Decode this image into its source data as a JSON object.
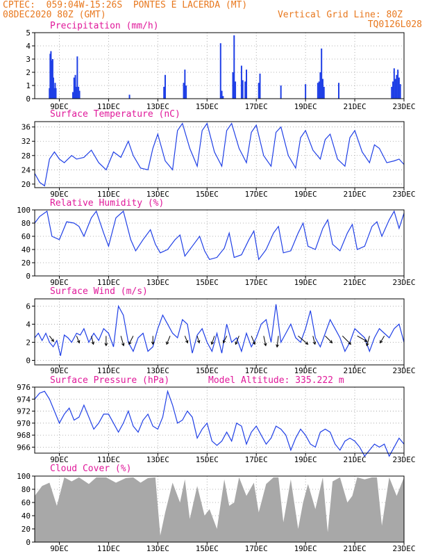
{
  "header": {
    "line1_left": "CPTEC:  059:04W-15:26S  PONTES E LACERDA (MT)",
    "line2_left": "08DEC2020 80Z (GMT)",
    "line2_right": "Vertical Grid Line: 80Z",
    "line3_right": "TQ0126L028"
  },
  "colors": {
    "header": "#e8781e",
    "title": "#e0189a",
    "series": "#1f3fe6",
    "cloud": "#a8a8a8",
    "grid": "#9a9a9a"
  },
  "x_axis": {
    "ticks": [
      "9DEC",
      "11DEC",
      "13DEC",
      "15DEC",
      "17DEC",
      "19DEC",
      "21DEC",
      "23DEC"
    ],
    "tick_days": [
      9,
      11,
      13,
      15,
      17,
      19,
      21,
      23
    ],
    "range_days": [
      8.0,
      23.0
    ]
  },
  "chart_data": [
    {
      "id": "precip",
      "type": "bar",
      "title": "Precipitation (mm/h)",
      "ylim": [
        0,
        5
      ],
      "yticks": [
        0,
        1,
        2,
        3,
        4,
        5
      ],
      "color": "#1f3fe6",
      "x": [
        8.6,
        8.63,
        8.66,
        8.7,
        8.73,
        8.76,
        8.8,
        8.83,
        8.86,
        9.55,
        9.6,
        9.65,
        9.7,
        9.73,
        9.78,
        9.82,
        11.85,
        13.25,
        13.3,
        14.05,
        14.1,
        14.15,
        15.55,
        15.6,
        15.65,
        16.05,
        16.1,
        16.15,
        16.4,
        16.45,
        16.55,
        16.6,
        17.1,
        17.15,
        18.0,
        19.0,
        19.5,
        19.55,
        19.6,
        19.65,
        19.7,
        19.75,
        20.35,
        22.5,
        22.55,
        22.6,
        22.65,
        22.7,
        22.75,
        22.8,
        22.85
      ],
      "values": [
        0.8,
        3.4,
        3.6,
        2.9,
        3.0,
        1.6,
        0.8,
        1.2,
        0.8,
        0.5,
        1.6,
        1.8,
        0.9,
        3.2,
        0.9,
        0.6,
        0.3,
        0.9,
        1.8,
        1.2,
        2.2,
        1.0,
        4.2,
        0.6,
        0.2,
        2.0,
        4.8,
        1.3,
        2.5,
        1.4,
        1.3,
        2.2,
        1.2,
        1.9,
        1.0,
        1.1,
        1.2,
        1.3,
        2.0,
        3.8,
        1.5,
        0.9,
        1.2,
        0.9,
        1.3,
        2.3,
        1.5,
        1.8,
        2.2,
        1.6,
        1.1
      ]
    },
    {
      "id": "temp",
      "type": "line",
      "title": "Surface Temperature (nC)",
      "ylim": [
        19,
        37.5
      ],
      "yticks": [
        20,
        24,
        28,
        32,
        36
      ],
      "color": "#1f3fe6",
      "x": [
        8.0,
        8.2,
        8.4,
        8.6,
        8.8,
        9.0,
        9.2,
        9.5,
        9.7,
        10.0,
        10.3,
        10.6,
        10.9,
        11.2,
        11.5,
        11.8,
        12.0,
        12.3,
        12.6,
        12.8,
        13.0,
        13.3,
        13.6,
        13.8,
        14.0,
        14.3,
        14.6,
        14.8,
        15.0,
        15.3,
        15.6,
        15.8,
        16.0,
        16.3,
        16.6,
        16.8,
        17.0,
        17.3,
        17.6,
        17.8,
        18.0,
        18.3,
        18.6,
        18.8,
        19.0,
        19.3,
        19.6,
        19.8,
        20.0,
        20.3,
        20.6,
        20.8,
        21.0,
        21.3,
        21.6,
        21.8,
        22.0,
        22.3,
        22.6,
        22.8,
        23.0
      ],
      "y": [
        23.0,
        20.5,
        19.5,
        27.0,
        29.0,
        27.0,
        26.0,
        28.0,
        27.0,
        27.5,
        29.5,
        26.0,
        24.0,
        29.0,
        27.5,
        32.0,
        28.0,
        24.5,
        24.0,
        30.0,
        34.0,
        26.5,
        24.0,
        35.0,
        37.0,
        30.0,
        25.0,
        35.0,
        37.0,
        29.0,
        25.0,
        35.0,
        37.0,
        30.0,
        26.0,
        34.5,
        36.5,
        28.0,
        25.0,
        34.5,
        36.0,
        28.0,
        24.5,
        33.0,
        35.0,
        29.5,
        27.0,
        32.5,
        34.0,
        27.0,
        25.0,
        33.0,
        35.0,
        29.0,
        26.0,
        31.0,
        30.0,
        26.0,
        26.5,
        27.0,
        25.5
      ]
    },
    {
      "id": "rh",
      "type": "line",
      "title": "Relative Humidity (%)",
      "ylim": [
        0,
        100
      ],
      "yticks": [
        0,
        20,
        40,
        60,
        80,
        100
      ],
      "color": "#1f3fe6",
      "x": [
        8.0,
        8.2,
        8.5,
        8.7,
        9.0,
        9.3,
        9.6,
        9.8,
        10.0,
        10.3,
        10.5,
        10.8,
        11.0,
        11.3,
        11.6,
        11.9,
        12.1,
        12.4,
        12.7,
        12.9,
        13.1,
        13.4,
        13.7,
        13.9,
        14.1,
        14.4,
        14.7,
        14.9,
        15.1,
        15.4,
        15.7,
        15.9,
        16.1,
        16.4,
        16.7,
        16.9,
        17.1,
        17.4,
        17.7,
        17.9,
        18.1,
        18.4,
        18.7,
        18.9,
        19.1,
        19.4,
        19.7,
        19.9,
        20.1,
        20.4,
        20.7,
        20.9,
        21.1,
        21.4,
        21.7,
        21.9,
        22.1,
        22.4,
        22.6,
        22.8,
        23.0
      ],
      "y": [
        80,
        90,
        98,
        60,
        55,
        82,
        80,
        75,
        60,
        88,
        98,
        65,
        45,
        88,
        98,
        55,
        38,
        55,
        70,
        48,
        35,
        40,
        55,
        62,
        30,
        45,
        60,
        38,
        25,
        28,
        42,
        65,
        28,
        32,
        55,
        68,
        25,
        40,
        65,
        75,
        35,
        38,
        65,
        80,
        45,
        40,
        72,
        85,
        48,
        38,
        65,
        78,
        40,
        45,
        75,
        82,
        60,
        85,
        98,
        72,
        95
      ]
    },
    {
      "id": "wind",
      "type": "line",
      "title": "Surface Wind (m/s)",
      "ylim": [
        -0.5,
        6.8
      ],
      "yticks": [
        0,
        2,
        4,
        6
      ],
      "color": "#1f3fe6",
      "x": [
        8.0,
        8.15,
        8.3,
        8.45,
        8.6,
        8.75,
        8.9,
        9.05,
        9.2,
        9.35,
        9.5,
        9.7,
        9.85,
        10.0,
        10.2,
        10.4,
        10.6,
        10.8,
        11.0,
        11.2,
        11.4,
        11.6,
        11.8,
        12.0,
        12.2,
        12.4,
        12.6,
        12.8,
        13.0,
        13.2,
        13.4,
        13.6,
        13.8,
        14.0,
        14.2,
        14.4,
        14.6,
        14.8,
        15.0,
        15.2,
        15.4,
        15.6,
        15.8,
        16.0,
        16.2,
        16.4,
        16.6,
        16.8,
        17.0,
        17.2,
        17.4,
        17.6,
        17.8,
        18.0,
        18.2,
        18.4,
        18.6,
        18.8,
        19.0,
        19.2,
        19.4,
        19.6,
        19.8,
        20.0,
        20.2,
        20.4,
        20.6,
        20.8,
        21.0,
        21.2,
        21.4,
        21.6,
        21.8,
        22.0,
        22.2,
        22.4,
        22.6,
        22.8,
        23.0
      ],
      "y": [
        2.5,
        3.0,
        2.2,
        3.0,
        2.0,
        1.5,
        2.2,
        0.5,
        2.8,
        2.5,
        2.0,
        3.0,
        2.8,
        3.5,
        2.0,
        3.0,
        2.2,
        3.5,
        3.0,
        1.5,
        6.0,
        5.0,
        2.0,
        1.0,
        2.5,
        3.0,
        1.0,
        1.5,
        3.5,
        5.0,
        4.0,
        3.0,
        2.5,
        4.5,
        4.0,
        0.8,
        2.8,
        3.5,
        2.0,
        1.0,
        3.0,
        0.8,
        4.0,
        2.0,
        2.5,
        1.0,
        3.0,
        1.5,
        2.5,
        4.0,
        4.5,
        2.0,
        6.2,
        2.0,
        3.0,
        4.0,
        2.5,
        2.0,
        3.5,
        5.5,
        2.5,
        1.5,
        3.0,
        4.5,
        3.5,
        2.5,
        1.0,
        2.0,
        3.5,
        3.0,
        2.5,
        1.0,
        2.5,
        3.5,
        3.0,
        2.5,
        3.5,
        4.0,
        2.0
      ],
      "arrows": [
        {
          "x": 8.6,
          "dx": 6,
          "dy": 8
        },
        {
          "x": 9.7,
          "dx": 4,
          "dy": 10
        },
        {
          "x": 10.3,
          "dx": 3,
          "dy": 12
        },
        {
          "x": 10.9,
          "dx": 0,
          "dy": 14
        },
        {
          "x": 11.5,
          "dx": 4,
          "dy": 14
        },
        {
          "x": 12.0,
          "dx": -6,
          "dy": 12
        },
        {
          "x": 12.8,
          "dx": 0,
          "dy": 12
        },
        {
          "x": 13.5,
          "dx": -5,
          "dy": 12
        },
        {
          "x": 14.1,
          "dx": 4,
          "dy": 10
        },
        {
          "x": 14.6,
          "dx": 3,
          "dy": 10
        },
        {
          "x": 15.3,
          "dx": -4,
          "dy": 12
        },
        {
          "x": 15.8,
          "dx": -5,
          "dy": 10
        },
        {
          "x": 16.3,
          "dx": -5,
          "dy": 12
        },
        {
          "x": 16.8,
          "dx": 5,
          "dy": 12
        },
        {
          "x": 17.3,
          "dx": 3,
          "dy": 14
        },
        {
          "x": 17.9,
          "dx": -2,
          "dy": 16
        },
        {
          "x": 18.7,
          "dx": 14,
          "dy": 12
        },
        {
          "x": 19.3,
          "dx": 3,
          "dy": 12
        },
        {
          "x": 19.8,
          "dx": 10,
          "dy": 10
        },
        {
          "x": 20.5,
          "dx": 12,
          "dy": 12
        },
        {
          "x": 21.1,
          "dx": 14,
          "dy": 8
        },
        {
          "x": 21.6,
          "dx": -4,
          "dy": 14
        },
        {
          "x": 22.2,
          "dx": -6,
          "dy": 10
        }
      ]
    },
    {
      "id": "pres",
      "type": "line",
      "title": "Surface Pressure (hPa)",
      "subtitle": "Model Altitude: 335.222 m",
      "ylim": [
        965,
        976
      ],
      "yticks": [
        966,
        968,
        970,
        972,
        974,
        976
      ],
      "color": "#1f3fe6",
      "x": [
        8.0,
        8.2,
        8.4,
        8.6,
        8.8,
        9.0,
        9.2,
        9.4,
        9.6,
        9.8,
        10.0,
        10.2,
        10.4,
        10.6,
        10.8,
        11.0,
        11.2,
        11.4,
        11.6,
        11.8,
        12.0,
        12.2,
        12.4,
        12.6,
        12.8,
        13.0,
        13.2,
        13.4,
        13.6,
        13.8,
        14.0,
        14.2,
        14.4,
        14.6,
        14.8,
        15.0,
        15.2,
        15.4,
        15.6,
        15.8,
        16.0,
        16.2,
        16.4,
        16.6,
        16.8,
        17.0,
        17.2,
        17.4,
        17.6,
        17.8,
        18.0,
        18.2,
        18.4,
        18.6,
        18.8,
        19.0,
        19.2,
        19.4,
        19.6,
        19.8,
        20.0,
        20.2,
        20.4,
        20.6,
        20.8,
        21.0,
        21.2,
        21.4,
        21.6,
        21.8,
        22.0,
        22.2,
        22.4,
        22.6,
        22.8,
        23.0
      ],
      "y": [
        974,
        975,
        975.3,
        974,
        972,
        970,
        971.5,
        972.5,
        970.5,
        971,
        973,
        971,
        969,
        970,
        971.5,
        971.5,
        970,
        968.5,
        970,
        972,
        969.5,
        968.5,
        970.5,
        971.5,
        969.5,
        969,
        971,
        975.3,
        973,
        970,
        970.5,
        972,
        971,
        967.5,
        969,
        970,
        967,
        966.3,
        967,
        968.5,
        967,
        970,
        969.5,
        966.5,
        968.5,
        969.5,
        968,
        966.5,
        967.5,
        969.5,
        969,
        968,
        965.5,
        967.5,
        969,
        968,
        966.5,
        966,
        968.5,
        969,
        968.5,
        966.5,
        965.5,
        967,
        967.5,
        967,
        966,
        964.5,
        965.5,
        966.5,
        966,
        966.5,
        964.5,
        966,
        967.5,
        966.5
      ]
    },
    {
      "id": "cloud",
      "type": "area",
      "title": "Cloud Cover (%)",
      "ylim": [
        0,
        100
      ],
      "yticks": [
        0,
        20,
        40,
        60,
        80,
        100
      ],
      "color": "#a8a8a8",
      "x": [
        8.0,
        8.3,
        8.6,
        8.9,
        9.2,
        9.5,
        9.8,
        10.2,
        10.5,
        10.9,
        11.3,
        11.7,
        12.0,
        12.3,
        12.6,
        12.9,
        13.1,
        13.3,
        13.6,
        13.9,
        14.1,
        14.3,
        14.6,
        14.9,
        15.1,
        15.4,
        15.7,
        15.9,
        16.1,
        16.3,
        16.6,
        16.9,
        17.1,
        17.4,
        17.7,
        17.9,
        18.1,
        18.4,
        18.7,
        18.9,
        19.1,
        19.4,
        19.7,
        19.9,
        20.1,
        20.4,
        20.7,
        20.9,
        21.1,
        21.4,
        21.7,
        21.9,
        22.1,
        22.4,
        22.7,
        23.0
      ],
      "values": [
        70,
        85,
        90,
        55,
        98,
        92,
        98,
        88,
        98,
        98,
        90,
        97,
        98,
        90,
        97,
        98,
        10,
        45,
        90,
        60,
        95,
        35,
        85,
        40,
        50,
        20,
        95,
        55,
        60,
        98,
        70,
        90,
        45,
        88,
        98,
        98,
        30,
        95,
        20,
        60,
        88,
        50,
        98,
        15,
        92,
        98,
        60,
        70,
        98,
        95,
        98,
        98,
        25,
        98,
        70,
        98
      ]
    }
  ]
}
